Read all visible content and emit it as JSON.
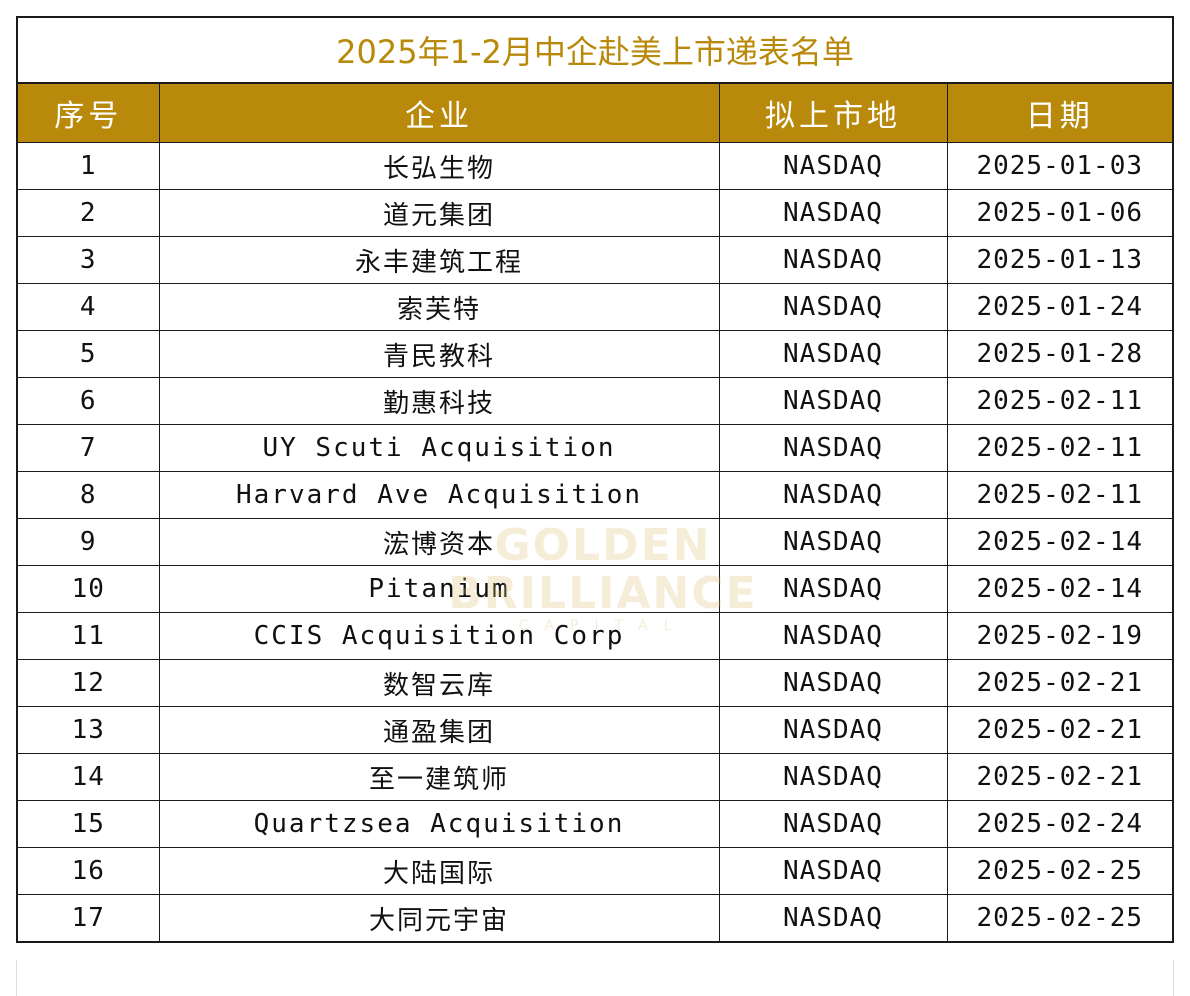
{
  "title": "2025年1-2月中企赴美上市递表名单",
  "headers": {
    "index": "序号",
    "company": "企业",
    "market": "拟上市地",
    "date": "日期"
  },
  "rows": [
    {
      "index": "1",
      "company": "长弘生物",
      "market": "NASDAQ",
      "date": "2025-01-03"
    },
    {
      "index": "2",
      "company": "道元集团",
      "market": "NASDAQ",
      "date": "2025-01-06"
    },
    {
      "index": "3",
      "company": "永丰建筑工程",
      "market": "NASDAQ",
      "date": "2025-01-13"
    },
    {
      "index": "4",
      "company": "索芙特",
      "market": "NASDAQ",
      "date": "2025-01-24"
    },
    {
      "index": "5",
      "company": "青民教科",
      "market": "NASDAQ",
      "date": "2025-01-28"
    },
    {
      "index": "6",
      "company": "勤惠科技",
      "market": "NASDAQ",
      "date": "2025-02-11"
    },
    {
      "index": "7",
      "company": "UY Scuti Acquisition",
      "market": "NASDAQ",
      "date": "2025-02-11"
    },
    {
      "index": "8",
      "company": "Harvard Ave Acquisition",
      "market": "NASDAQ",
      "date": "2025-02-11"
    },
    {
      "index": "9",
      "company": "浤博资本",
      "market": "NASDAQ",
      "date": "2025-02-14"
    },
    {
      "index": "10",
      "company": "Pitanium",
      "market": "NASDAQ",
      "date": "2025-02-14"
    },
    {
      "index": "11",
      "company": "CCIS Acquisition Corp",
      "market": "NASDAQ",
      "date": "2025-02-19"
    },
    {
      "index": "12",
      "company": "数智云库",
      "market": "NASDAQ",
      "date": "2025-02-21"
    },
    {
      "index": "13",
      "company": "通盈集团",
      "market": "NASDAQ",
      "date": "2025-02-21"
    },
    {
      "index": "14",
      "company": "至一建筑师",
      "market": "NASDAQ",
      "date": "2025-02-21"
    },
    {
      "index": "15",
      "company": "Quartzsea Acquisition",
      "market": "NASDAQ",
      "date": "2025-02-24"
    },
    {
      "index": "16",
      "company": "大陆国际",
      "market": "NASDAQ",
      "date": "2025-02-25"
    },
    {
      "index": "17",
      "company": "大同元宇宙",
      "market": "NASDAQ",
      "date": "2025-02-25"
    }
  ],
  "watermark": {
    "main": "GOLDEN BRILLIANCE",
    "sub": "CAPITAL"
  },
  "colors": {
    "accent": "#b8890a",
    "header_text": "#ffffff",
    "border": "#1a1a1a"
  }
}
